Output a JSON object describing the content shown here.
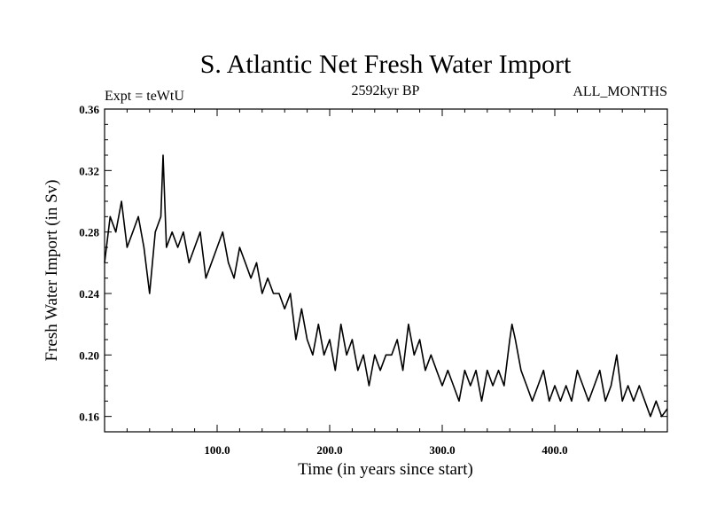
{
  "chart_data": {
    "type": "line",
    "title": "S. Atlantic Net Fresh Water Import",
    "subtitle_left": "Expt = teWtU",
    "subtitle_center": "2592kyr BP",
    "subtitle_right": "ALL_MONTHS",
    "xlabel": "Time (in years since start)",
    "ylabel": "Fresh Water Import (in Sv)",
    "xlim": [
      0,
      500
    ],
    "ylim": [
      0.15,
      0.36
    ],
    "x_ticks": [
      100,
      200,
      300,
      400
    ],
    "x_tick_labels": [
      "100.0",
      "200.0",
      "300.0",
      "400.0"
    ],
    "y_ticks": [
      0.16,
      0.2,
      0.24,
      0.28,
      0.32,
      0.36
    ],
    "y_tick_labels": [
      "0.16",
      "0.20",
      "0.24",
      "0.28",
      "0.32",
      "0.36"
    ],
    "grid": false,
    "series": [
      {
        "name": "Net Fresh Water Import",
        "x": [
          0,
          5,
          10,
          15,
          20,
          25,
          30,
          35,
          40,
          45,
          50,
          52,
          55,
          60,
          65,
          70,
          75,
          80,
          85,
          90,
          95,
          100,
          105,
          110,
          115,
          120,
          125,
          130,
          135,
          140,
          145,
          150,
          155,
          160,
          165,
          170,
          175,
          180,
          185,
          190,
          195,
          200,
          205,
          210,
          215,
          220,
          225,
          230,
          235,
          240,
          245,
          250,
          255,
          260,
          265,
          270,
          275,
          280,
          285,
          290,
          295,
          300,
          305,
          310,
          315,
          320,
          325,
          330,
          335,
          340,
          345,
          350,
          355,
          360,
          362,
          365,
          370,
          375,
          380,
          385,
          390,
          395,
          400,
          405,
          410,
          415,
          420,
          425,
          430,
          435,
          440,
          445,
          450,
          455,
          460,
          465,
          470,
          475,
          480,
          485,
          490,
          495,
          500
        ],
        "y": [
          0.26,
          0.29,
          0.28,
          0.3,
          0.27,
          0.28,
          0.29,
          0.27,
          0.24,
          0.28,
          0.29,
          0.33,
          0.27,
          0.28,
          0.27,
          0.28,
          0.26,
          0.27,
          0.28,
          0.25,
          0.26,
          0.27,
          0.28,
          0.26,
          0.25,
          0.27,
          0.26,
          0.25,
          0.26,
          0.24,
          0.25,
          0.24,
          0.24,
          0.23,
          0.24,
          0.21,
          0.23,
          0.21,
          0.2,
          0.22,
          0.2,
          0.21,
          0.19,
          0.22,
          0.2,
          0.21,
          0.19,
          0.2,
          0.18,
          0.2,
          0.19,
          0.2,
          0.2,
          0.21,
          0.19,
          0.22,
          0.2,
          0.21,
          0.19,
          0.2,
          0.19,
          0.18,
          0.19,
          0.18,
          0.17,
          0.19,
          0.18,
          0.19,
          0.17,
          0.19,
          0.18,
          0.19,
          0.18,
          0.21,
          0.22,
          0.21,
          0.19,
          0.18,
          0.17,
          0.18,
          0.19,
          0.17,
          0.18,
          0.17,
          0.18,
          0.17,
          0.19,
          0.18,
          0.17,
          0.18,
          0.19,
          0.17,
          0.18,
          0.2,
          0.17,
          0.18,
          0.17,
          0.18,
          0.17,
          0.16,
          0.17,
          0.16,
          0.165
        ]
      }
    ]
  }
}
